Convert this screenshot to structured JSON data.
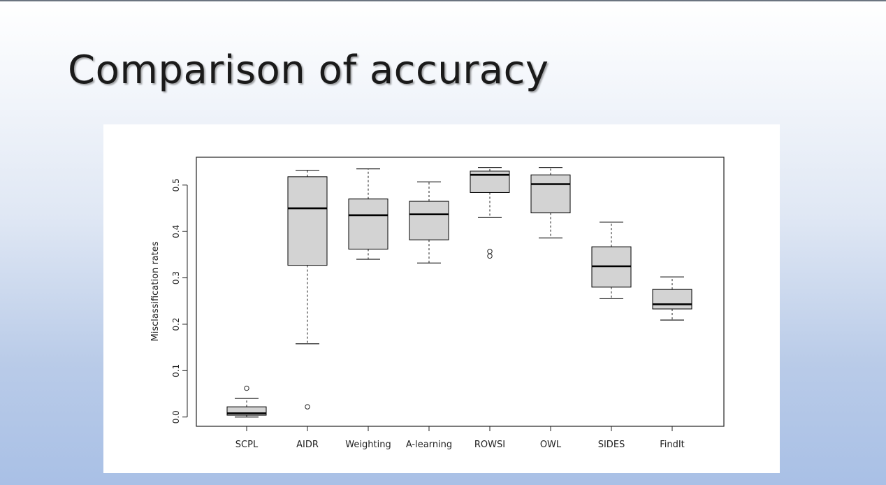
{
  "slide": {
    "title": "Comparison of accuracy"
  },
  "chart_data": {
    "type": "box",
    "title": "",
    "xlabel": "",
    "ylabel": "Misclassification rates",
    "ylim": [
      -0.02,
      0.56
    ],
    "yticks": [
      "0.0",
      "0.1",
      "0.2",
      "0.3",
      "0.4",
      "0.5"
    ],
    "grid": false,
    "categories": [
      "SCPL",
      "AIDR",
      "Weighting",
      "A-learning",
      "ROWSI",
      "OWL",
      "SIDES",
      "FindIt"
    ],
    "boxes": [
      {
        "min": 0.0,
        "q1": 0.004,
        "median": 0.008,
        "q3": 0.022,
        "max": 0.04,
        "outliers": [
          0.062
        ]
      },
      {
        "min": 0.158,
        "q1": 0.327,
        "median": 0.45,
        "q3": 0.518,
        "max": 0.532,
        "outliers": [
          0.022
        ]
      },
      {
        "min": 0.34,
        "q1": 0.362,
        "median": 0.435,
        "q3": 0.47,
        "max": 0.535,
        "outliers": []
      },
      {
        "min": 0.332,
        "q1": 0.382,
        "median": 0.437,
        "q3": 0.465,
        "max": 0.507,
        "outliers": []
      },
      {
        "min": 0.43,
        "q1": 0.484,
        "median": 0.522,
        "q3": 0.53,
        "max": 0.538,
        "outliers": [
          0.347,
          0.357
        ]
      },
      {
        "min": 0.386,
        "q1": 0.44,
        "median": 0.502,
        "q3": 0.522,
        "max": 0.538,
        "outliers": []
      },
      {
        "min": 0.255,
        "q1": 0.28,
        "median": 0.325,
        "q3": 0.367,
        "max": 0.42,
        "outliers": []
      },
      {
        "min": 0.209,
        "q1": 0.233,
        "median": 0.243,
        "q3": 0.275,
        "max": 0.302,
        "outliers": []
      }
    ],
    "colors": {
      "box_fill": "#d3d3d3",
      "stroke": "#000000"
    }
  }
}
